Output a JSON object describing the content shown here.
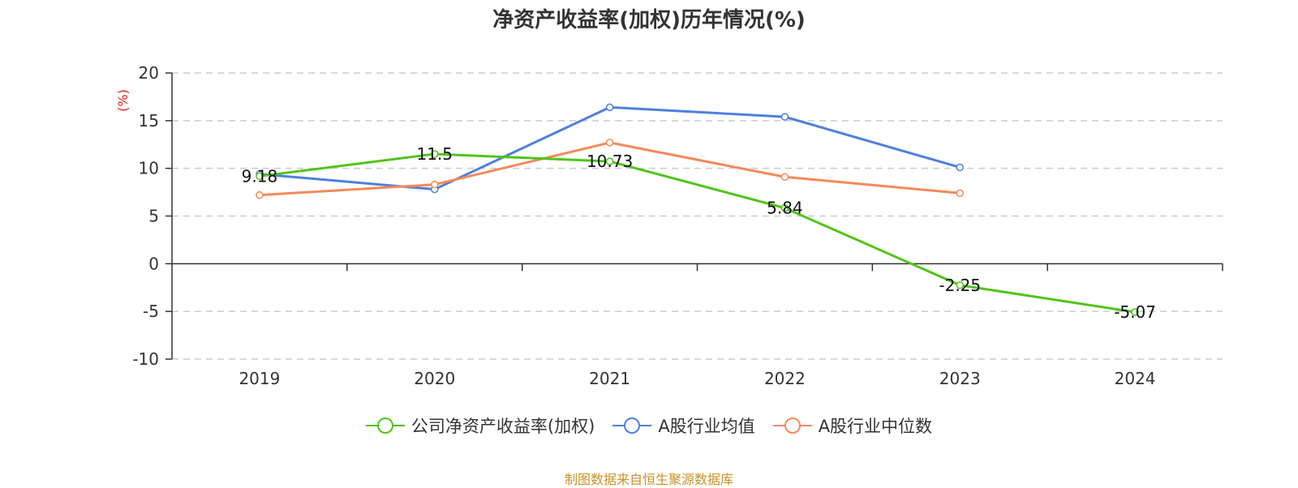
{
  "title": "净资产收益率(加权)历年情况(%)",
  "source_note": "制图数据来自恒生聚源数据库",
  "chart_data": {
    "type": "line",
    "title": "净资产收益率(加权)历年情况(%)",
    "ylabel": "(%)",
    "xlabel": "",
    "categories": [
      "2019",
      "2020",
      "2021",
      "2022",
      "2023",
      "2024"
    ],
    "ylim": [
      -10,
      20
    ],
    "yticks": [
      20,
      15,
      10,
      5,
      0,
      -5,
      -10
    ],
    "ytick_labels": [
      "20",
      "15",
      "10",
      "5",
      "0",
      "-5",
      "-10"
    ],
    "grid": true,
    "legend_position": "bottom",
    "series": [
      {
        "name": "公司净资产收益率(加权)",
        "color": "#52c41a",
        "values": [
          9.18,
          11.5,
          10.73,
          5.84,
          -2.25,
          -5.07
        ],
        "labels": [
          "9.18",
          "11.5",
          "10.73",
          "5.84",
          "-2.25",
          "-5.07"
        ]
      },
      {
        "name": "A股行业均值",
        "color": "#4f7fde",
        "values": [
          9.4,
          7.8,
          16.4,
          15.4,
          10.1,
          null
        ]
      },
      {
        "name": "A股行业中位数",
        "color": "#f5895a",
        "values": [
          7.2,
          8.3,
          12.7,
          9.1,
          7.4,
          null
        ]
      }
    ]
  }
}
